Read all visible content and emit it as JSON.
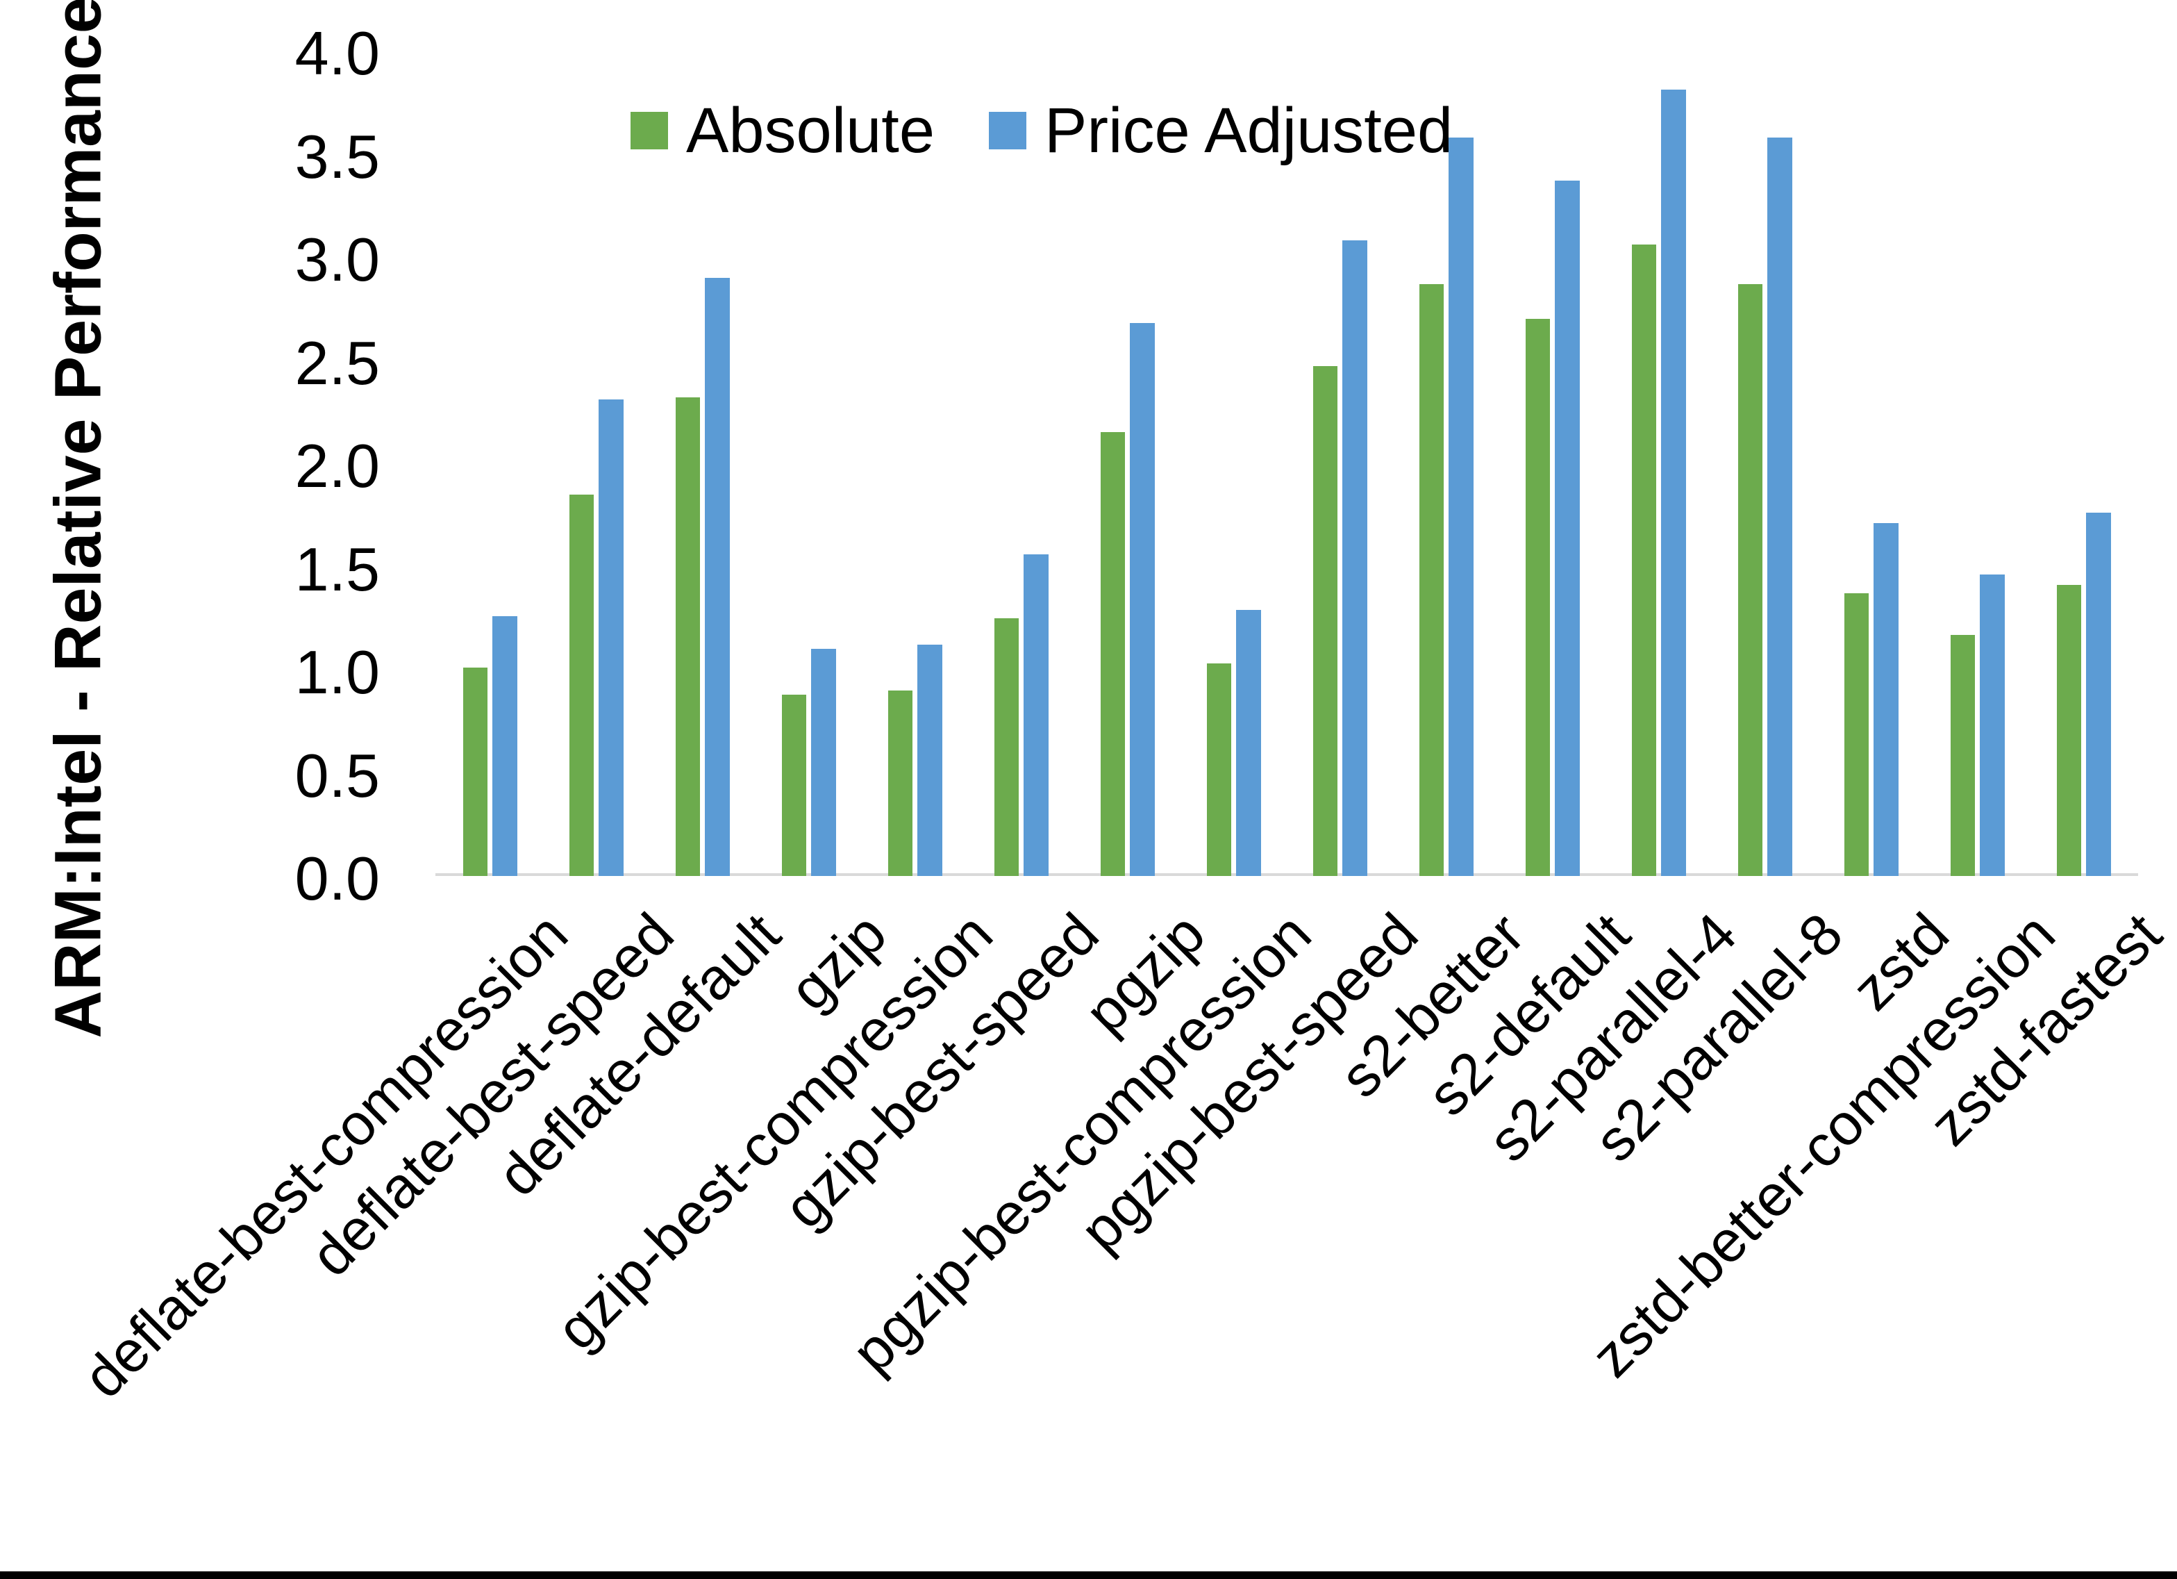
{
  "y_axis": {
    "title": "ARM:Intel - Relative Performance",
    "tick_labels": [
      "0.0",
      "0.5",
      "1.0",
      "1.5",
      "2.0",
      "2.5",
      "3.0",
      "3.5",
      "4.0"
    ]
  },
  "legend": [
    {
      "label": "Absolute",
      "color": "#6CAB4D"
    },
    {
      "label": "Price Adjusted",
      "color": "#5B9BD5"
    }
  ],
  "chart_data": {
    "type": "bar",
    "title": "",
    "xlabel": "",
    "ylabel": "ARM:Intel - Relative Performance",
    "ylim": [
      0.0,
      4.0
    ],
    "ytick_step": 0.5,
    "grid": false,
    "legend_position": "top-center",
    "categories": [
      "deflate-best-compression",
      "deflate-best-speed",
      "deflate-default",
      "gzip",
      "gzip-best-compression",
      "gzip-best-speed",
      "pgzip",
      "pgzip-best-compression",
      "pgzip-best-speed",
      "s2-better",
      "s2-default",
      "s2-parallel-4",
      "s2-parallel-8",
      "zstd",
      "zstd-better-compression",
      "zstd-fastest"
    ],
    "series": [
      {
        "name": "Absolute",
        "color": "#6CAB4D",
        "values": [
          1.01,
          1.85,
          2.32,
          0.88,
          0.9,
          1.25,
          2.15,
          1.03,
          2.47,
          2.87,
          2.7,
          3.06,
          2.87,
          1.37,
          1.17,
          1.41
        ]
      },
      {
        "name": "Price Adjusted",
        "color": "#5B9BD5",
        "values": [
          1.26,
          2.31,
          2.9,
          1.1,
          1.12,
          1.56,
          2.68,
          1.29,
          3.08,
          3.58,
          3.37,
          3.81,
          3.58,
          1.71,
          1.46,
          1.76
        ]
      }
    ]
  }
}
